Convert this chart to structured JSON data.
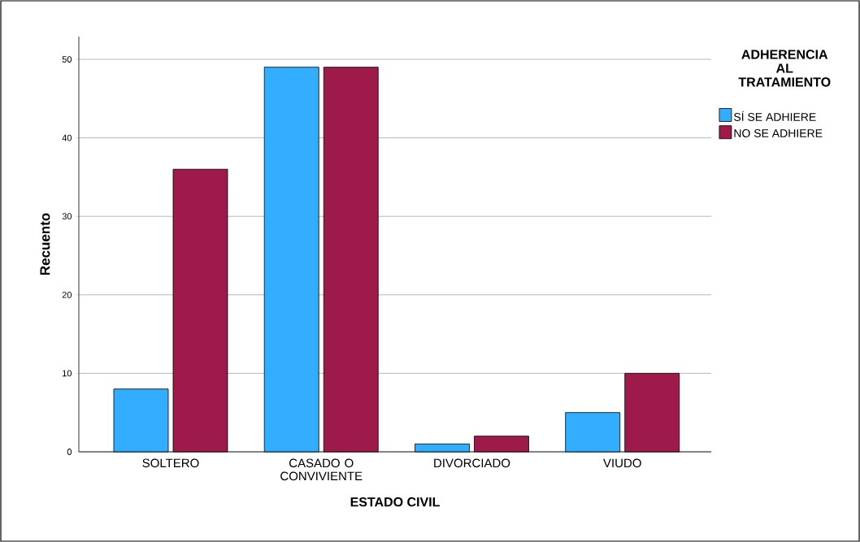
{
  "chart_data": {
    "type": "bar",
    "xlabel": "ESTADO CIVIL",
    "ylabel": "Recuento",
    "legend_title": "ADHERENCIA AL TRATAMIENTO",
    "categories": [
      "SOLTERO",
      "CASADO O CONVIVIENTE",
      "DIVORCIADO",
      "VIUDO"
    ],
    "series": [
      {
        "name": "SÍ SE ADHIERE",
        "color": "#33adff",
        "values": [
          8,
          49,
          1,
          5
        ]
      },
      {
        "name": "NO SE ADHIERE",
        "color": "#9e1a4a",
        "values": [
          36,
          49,
          2,
          10
        ]
      }
    ],
    "ylim": [
      0,
      52.9
    ],
    "yticks": [
      0,
      10,
      20,
      30,
      40,
      50
    ],
    "grid": "y",
    "legend": "right"
  }
}
